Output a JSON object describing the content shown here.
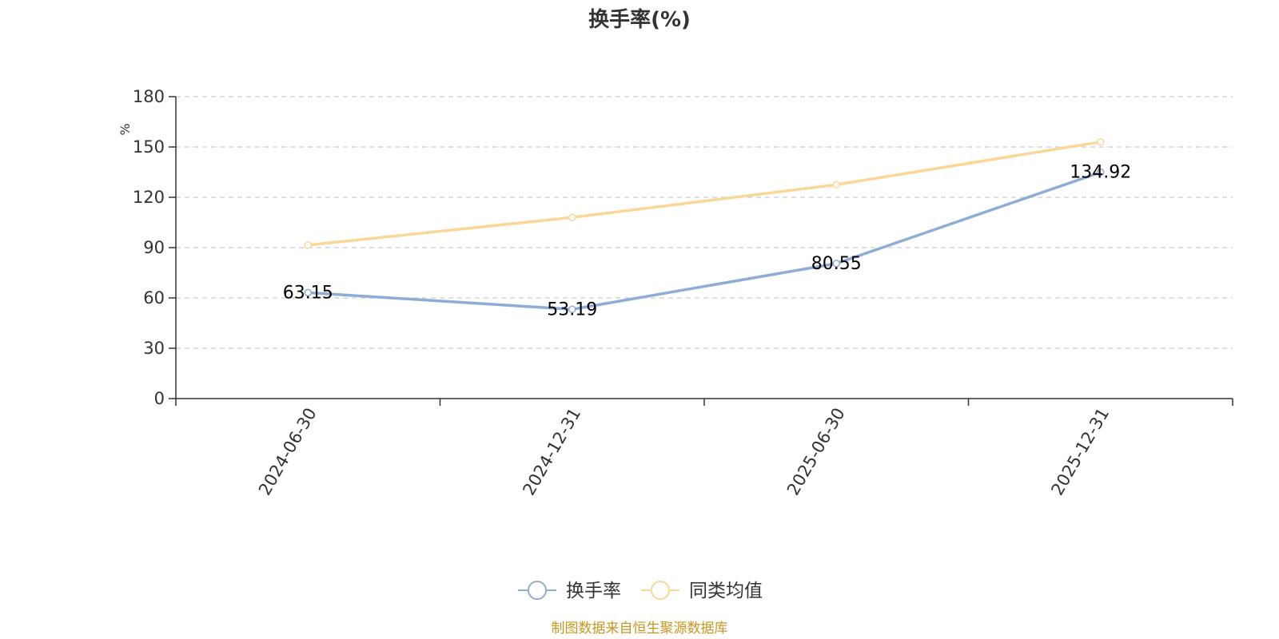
{
  "chart_data": {
    "type": "line",
    "title": "换手率(%)",
    "ylabel": "%",
    "categories": [
      "2024-06-30",
      "2024-12-31",
      "2025-06-30",
      "2025-12-31"
    ],
    "ylim": [
      0,
      180
    ],
    "yticks": [
      0,
      30,
      60,
      90,
      120,
      150,
      180
    ],
    "grid": true,
    "legend_position": "bottom-center",
    "series": [
      {
        "name": "换手率",
        "values": [
          63.15,
          53.19,
          80.55,
          134.92
        ],
        "color": "#8eacd8",
        "data_labels": [
          "63.15",
          "53.19",
          "80.55",
          "134.92"
        ]
      },
      {
        "name": "同类均值",
        "values": [
          91.5,
          108.0,
          127.5,
          153.0
        ],
        "color": "#fad797"
      }
    ]
  },
  "footer": {
    "source": "制图数据来自恒生聚源数据库",
    "color": "#c8961e"
  },
  "colors": {
    "axis": "#333333",
    "grid": "#cccccc",
    "ylabel": "#e00000"
  }
}
